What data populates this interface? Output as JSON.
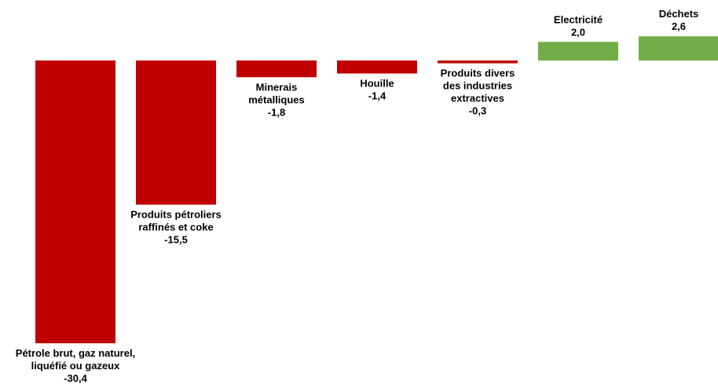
{
  "chart_data": {
    "type": "bar",
    "title": "",
    "xlabel": "",
    "ylabel": "",
    "ylim": [
      -30.4,
      2.6
    ],
    "grid": false,
    "legend": "none",
    "colors": {
      "negative": "#C00000",
      "positive": "#70AD47"
    },
    "categories": [
      [
        "Pétrole brut, gaz naturel,",
        "liquéfié ou gazeux"
      ],
      [
        "Produits pétroliers",
        "raffinés et coke"
      ],
      [
        "Minerais",
        "métalliques"
      ],
      [
        "Houille"
      ],
      [
        "Produits divers",
        "des industries",
        "extractives"
      ],
      [
        "Electricité"
      ],
      [
        "Déchets"
      ]
    ],
    "values": [
      -30.4,
      -15.5,
      -1.8,
      -1.4,
      -0.3,
      2.0,
      2.6
    ],
    "value_labels": [
      "-30,4",
      "-15,5",
      "-1,8",
      "-1,4",
      "-0,3",
      "2,0",
      "2,6"
    ]
  }
}
